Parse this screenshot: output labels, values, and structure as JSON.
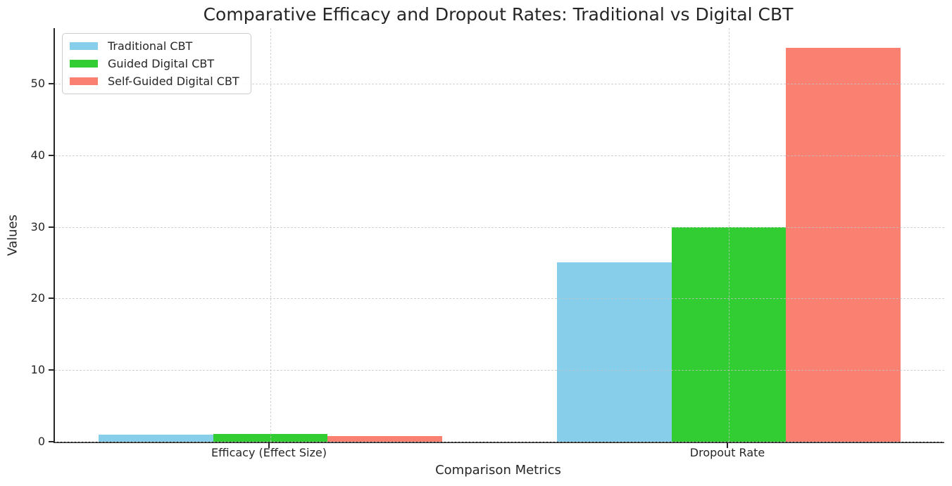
{
  "figure": {
    "background": "#ffffff"
  },
  "chart_data": {
    "type": "bar",
    "title": "Comparative Efficacy and Dropout Rates: Traditional vs Digital CBT",
    "xlabel": "Comparison Metrics",
    "ylabel": "Values",
    "categories": [
      "Efficacy (Effect Size)",
      "Dropout Rate"
    ],
    "series": [
      {
        "name": "Traditional CBT",
        "color": "#87CEEB",
        "values": [
          1.0,
          25
        ]
      },
      {
        "name": "Guided Digital CBT",
        "color": "#32CD32",
        "values": [
          1.1,
          30
        ]
      },
      {
        "name": "Self-Guided Digital CBT",
        "color": "#FA8072",
        "values": [
          0.8,
          55
        ]
      }
    ],
    "bar_width": 0.25,
    "yticks": [
      0,
      10,
      20,
      30,
      40,
      50
    ],
    "ylim": [
      0,
      57.75
    ],
    "xlim": [
      -0.47,
      1.47
    ],
    "grid": {
      "style": "dashed",
      "color": "#d3d3d3",
      "axis": "both",
      "above_bars": true
    },
    "legend": {
      "position": "upper left"
    },
    "spines": {
      "left": true,
      "bottom": true,
      "top": false,
      "right": false
    },
    "text_color": "#262626"
  }
}
